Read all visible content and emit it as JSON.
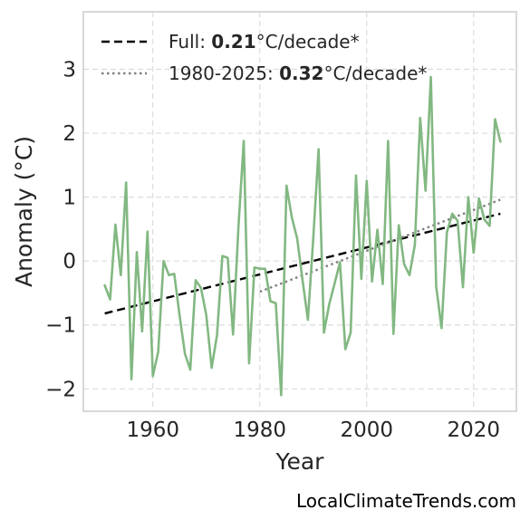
{
  "chart_data": {
    "type": "line",
    "title": "",
    "xlabel": "Year",
    "ylabel": "Anomaly (°C)",
    "xlim": [
      1947,
      2028
    ],
    "ylim": [
      -2.35,
      3.9
    ],
    "xticks": [
      1960,
      1980,
      2000,
      2020
    ],
    "yticks": [
      -2,
      -1,
      0,
      1,
      2,
      3
    ],
    "ytick_labels": [
      "−2",
      "−1",
      "0",
      "1",
      "2",
      "3"
    ],
    "grid": true,
    "legend_placement": "top-left",
    "series": [
      {
        "color": "#82b882",
        "x": [
          1951,
          1952,
          1953,
          1954,
          1955,
          1956,
          1957,
          1958,
          1959,
          1960,
          1961,
          1962,
          1963,
          1964,
          1965,
          1966,
          1967,
          1968,
          1969,
          1970,
          1971,
          1972,
          1973,
          1974,
          1975,
          1976,
          1977,
          1978,
          1979,
          1980,
          1981,
          1982,
          1983,
          1984,
          1985,
          1986,
          1987,
          1988,
          1989,
          1990,
          1991,
          1992,
          1993,
          1994,
          1995,
          1996,
          1997,
          1998,
          1999,
          2000,
          2001,
          2002,
          2003,
          2004,
          2005,
          2006,
          2007,
          2008,
          2009,
          2010,
          2011,
          2012,
          2013,
          2014,
          2015,
          2016,
          2017,
          2018,
          2019,
          2020,
          2021,
          2022,
          2023,
          2024,
          2025
        ],
        "y": [
          -0.38,
          -0.6,
          0.57,
          -0.22,
          1.23,
          -1.85,
          0.14,
          -1.1,
          0.46,
          -1.8,
          -1.42,
          0.0,
          -0.22,
          -0.2,
          -0.85,
          -1.45,
          -1.7,
          -0.3,
          -0.42,
          -0.85,
          -1.67,
          -1.16,
          0.08,
          0.05,
          -1.15,
          0.52,
          1.88,
          -1.6,
          -0.1,
          -0.12,
          -0.12,
          -0.63,
          -0.66,
          -2.1,
          1.18,
          0.68,
          0.35,
          -0.3,
          -0.92,
          0.35,
          1.75,
          -1.12,
          -0.67,
          -0.35,
          -0.02,
          -1.38,
          -1.12,
          1.34,
          -0.28,
          1.25,
          -0.32,
          0.49,
          -0.36,
          1.88,
          -1.14,
          0.56,
          -0.05,
          -0.22,
          0.25,
          2.24,
          1.1,
          2.88,
          -0.4,
          -1.05,
          0.45,
          0.74,
          0.63,
          -0.41,
          1.0,
          0.13,
          0.98,
          0.65,
          0.55,
          2.22,
          1.87
        ]
      }
    ],
    "trendlines": [
      {
        "style": "dashed",
        "color": "#000000",
        "x": [
          1951,
          2025
        ],
        "y": [
          -0.82,
          0.74
        ]
      },
      {
        "style": "dotted",
        "color": "#7f7f7f",
        "x": [
          1980,
          2025
        ],
        "y": [
          -0.48,
          0.96
        ]
      }
    ],
    "legend": [
      {
        "style": "dashed",
        "color": "#000000",
        "prefix": "Full: ",
        "value": "0.21",
        "suffix": "°C/decade*"
      },
      {
        "style": "dotted",
        "color": "#7f7f7f",
        "prefix": "1980-2025: ",
        "value": "0.32",
        "suffix": "°C/decade*"
      }
    ],
    "watermark": "LocalClimateTrends.com"
  }
}
